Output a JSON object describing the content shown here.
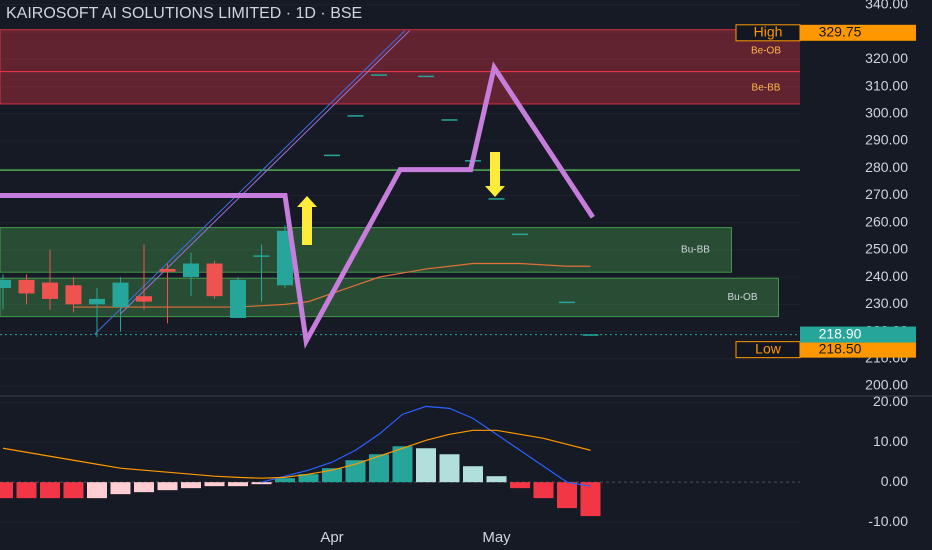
{
  "chart_data": [
    {
      "type": "candlestick",
      "title": "KAIROSOFT AI SOLUTIONS LIMITED · 1D · BSE",
      "categories": [
        null,
        null,
        null,
        null,
        null,
        null,
        null,
        null,
        null,
        null,
        null,
        null,
        null,
        null,
        "Apr",
        null,
        null,
        null,
        null,
        null,
        null,
        "May",
        null,
        null,
        null,
        null
      ],
      "open": [
        236,
        239,
        238,
        237,
        230,
        229,
        233,
        243,
        240,
        245,
        225,
        248,
        237,
        null,
        285,
        299.5,
        314.5,
        null,
        314,
        298,
        283,
        269,
        256,
        null,
        231,
        219
      ],
      "high": [
        241,
        241,
        250,
        240,
        236,
        240,
        252,
        245,
        249,
        246,
        240,
        252,
        259,
        null,
        285,
        299.5,
        314.5,
        null,
        314,
        298,
        283,
        269,
        256,
        null,
        231,
        219
      ],
      "low": [
        228,
        230,
        228,
        227,
        218,
        220,
        228,
        223,
        233,
        232,
        225,
        231,
        236,
        null,
        285,
        299.5,
        314.5,
        null,
        314,
        298,
        283,
        269,
        256,
        null,
        231,
        219
      ],
      "close": [
        239,
        234,
        232,
        230,
        232,
        238,
        231,
        242,
        245,
        233,
        239,
        248,
        257,
        null,
        285,
        299.5,
        314.5,
        null,
        314,
        298,
        283,
        269,
        256,
        null,
        231,
        219
      ],
      "up_color": "#26a69a",
      "down_color": "#ef5350",
      "ylim": [
        196.7,
        341.8
      ],
      "yticks": [
        {
          "value": 340,
          "label": "340.00"
        },
        {
          "value": 330,
          "label": "330.00"
        },
        {
          "value": 320,
          "label": "320.00"
        },
        {
          "value": 310,
          "label": "310.00"
        },
        {
          "value": 300,
          "label": "300.00"
        },
        {
          "value": 290,
          "label": "290.00"
        },
        {
          "value": 280,
          "label": "280.00"
        },
        {
          "value": 270,
          "label": "270.00"
        },
        {
          "value": 260,
          "label": "260.00"
        },
        {
          "value": 250,
          "label": "250.00"
        },
        {
          "value": 240,
          "label": "240.00"
        },
        {
          "value": 230,
          "label": "230.00"
        },
        {
          "value": 220,
          "label": "220.00"
        },
        {
          "value": 210,
          "label": "210.00"
        },
        {
          "value": 200,
          "label": "200.00"
        }
      ],
      "series": [
        {
          "color": "#e0703a",
          "values": [
            null,
            null,
            null,
            229,
            229,
            229,
            229,
            229,
            229,
            229,
            229,
            229.5,
            230,
            231,
            234,
            237,
            240,
            241.5,
            243,
            244,
            245,
            245,
            245,
            244.5,
            244,
            244
          ]
        }
      ],
      "projection": {
        "color": "#c77ddb",
        "x": [
          -0.13,
          12,
          12.9,
          16.9,
          19.9,
          20.9,
          25.1
        ],
        "values": [
          270,
          270,
          216.5,
          279.5,
          279.5,
          317,
          262
        ]
      },
      "trendlines": [
        {
          "color": "#3f6fe0",
          "x": [
            3.9,
            17.1
          ],
          "values": [
            219,
            330.5
          ]
        },
        {
          "color": "#9b6fd6",
          "x": [
            5,
            17.3
          ],
          "values": [
            226.5,
            330.5
          ]
        }
      ],
      "levels": [
        {
          "color": "#4caf50",
          "value": 279.3
        }
      ],
      "zones": [
        {
          "label": "Be-OB",
          "top": 330.9,
          "bottom": 315.5,
          "end": 34,
          "color": "#f23645"
        },
        {
          "label": "Be-BB",
          "top": 315.5,
          "bottom": 303.6,
          "end": 34,
          "color": "#f23645"
        },
        {
          "label": "Bu-BB",
          "top": 258.2,
          "bottom": 241.8,
          "end": 31,
          "color": "#4caf50"
        },
        {
          "label": "Bu-OB",
          "top": 239.6,
          "bottom": 225.5,
          "end": 33,
          "color": "#4caf50"
        }
      ],
      "markers": [
        {
          "label": "High",
          "value": 329.75,
          "value_label": "329.75"
        },
        {
          "label": "Low",
          "value": 218.5,
          "value_label": "218.50"
        }
      ],
      "last": {
        "value": 218.9,
        "value_label": "218.90",
        "color": "#26a69a"
      }
    },
    {
      "type": "macd",
      "values": [
        -4,
        -4,
        -4,
        -4,
        -4,
        -3,
        -2.5,
        -2,
        -1.5,
        -1,
        -1,
        -0.5,
        1,
        2,
        3.5,
        5.5,
        7,
        9,
        8.5,
        7,
        4,
        1.5,
        -1.5,
        -4,
        -6.5,
        -8.5
      ],
      "colors": [
        "#f23645",
        "#f23645",
        "#f23645",
        "#f23645",
        "#ffcdd2",
        "#ffcdd2",
        "#ffcdd2",
        "#ffcdd2",
        "#ffcdd2",
        "#ffcdd2",
        "#ffcdd2",
        "#ffcdd2",
        "#26a69a",
        "#26a69a",
        "#26a69a",
        "#26a69a",
        "#26a69a",
        "#26a69a",
        "#b2dfdb",
        "#b2dfdb",
        "#b2dfdb",
        "#b2dfdb",
        "#f23645",
        "#f23645",
        "#f23645",
        "#f23645"
      ],
      "series": [
        {
          "color": "#2962ff",
          "values": [
            null,
            null,
            null,
            null,
            null,
            null,
            null,
            null,
            null,
            null,
            null,
            0,
            1.5,
            3,
            5,
            8,
            12,
            17,
            19,
            18.5,
            16,
            12,
            8,
            4,
            0,
            -1
          ]
        },
        {
          "color": "#ff9800",
          "values": [
            8.5,
            7.5,
            6.5,
            5.5,
            4.5,
            3.5,
            3,
            2.5,
            2,
            1.5,
            1.2,
            1,
            1.2,
            2,
            3,
            4.5,
            6.5,
            8.5,
            10.5,
            12,
            13,
            13,
            12,
            11,
            9.5,
            8
          ]
        }
      ],
      "ylim": [
        -17,
        21.6
      ],
      "yticks": [
        {
          "value": 20,
          "label": "20.00"
        },
        {
          "value": 10,
          "label": "10.00"
        },
        {
          "value": 0,
          "label": "0.00"
        },
        {
          "value": -10,
          "label": "-10.00"
        }
      ]
    }
  ]
}
